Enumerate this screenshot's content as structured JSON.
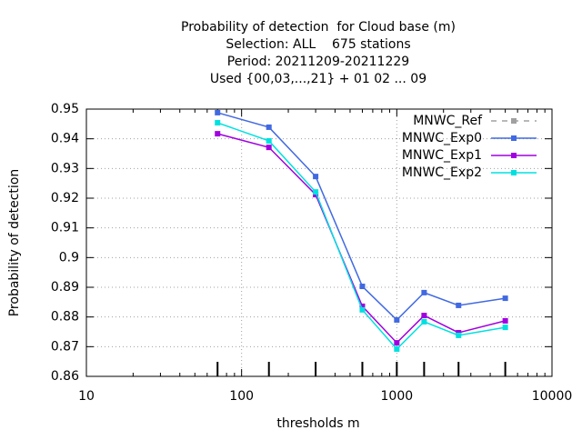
{
  "chart_data": {
    "type": "line",
    "title": [
      "Probability of detection  for Cloud base (m)",
      "Selection: ALL    675 stations",
      "Period: 20211209-20211229",
      "Used {00,03,...,21} + 01 02 ... 09"
    ],
    "xlabel": "thresholds m",
    "ylabel": "Probability of detection",
    "x": [
      70,
      150,
      300,
      600,
      1000,
      1500,
      2500,
      5000
    ],
    "series": [
      {
        "name": "MNWC_Ref",
        "color": "#a0a0a0",
        "dashed": true,
        "values": [
          null,
          null,
          null,
          null,
          null,
          null,
          null,
          null
        ]
      },
      {
        "name": "MNWC_Exp0",
        "color": "#4169e1",
        "values": [
          0.9488,
          0.9439,
          0.9273,
          0.8903,
          0.879,
          0.8882,
          0.8839,
          0.8863
        ]
      },
      {
        "name": "MNWC_Exp1",
        "color": "#a000e0",
        "values": [
          0.9417,
          0.9371,
          0.9212,
          0.8836,
          0.8713,
          0.8805,
          0.8747,
          0.8787
        ]
      },
      {
        "name": "MNWC_Exp2",
        "color": "#00e0e0",
        "values": [
          0.9454,
          0.9393,
          0.9221,
          0.8824,
          0.8692,
          0.8784,
          0.8738,
          0.8765
        ]
      }
    ],
    "xlim": [
      10,
      10000
    ],
    "xticks": [
      10,
      100,
      1000,
      10000
    ],
    "xlog": true,
    "ylim": [
      0.86,
      0.95
    ],
    "yticks": [
      0.86,
      0.87,
      0.88,
      0.89,
      0.9,
      0.91,
      0.92,
      0.93,
      0.94,
      0.95
    ],
    "grid": true,
    "legend": "top-right"
  }
}
